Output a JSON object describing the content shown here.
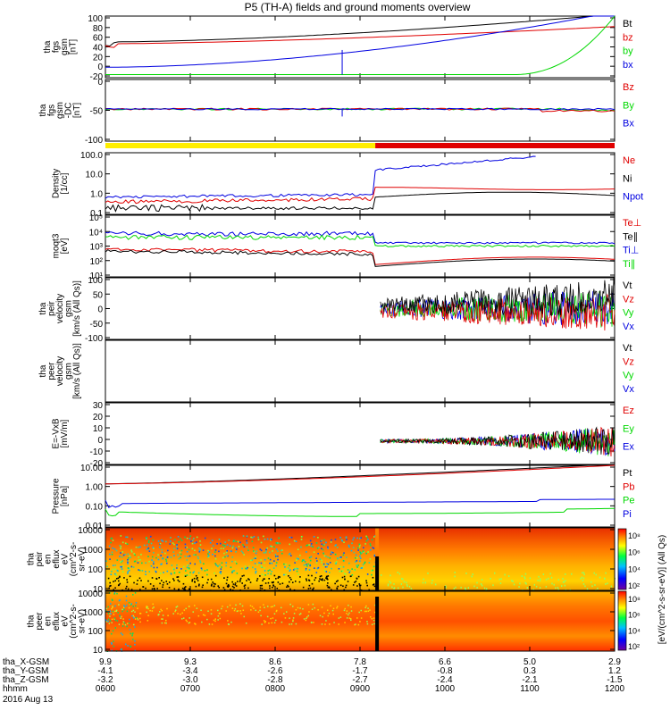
{
  "title": "P5 (TH-A) fields and ground moments overview",
  "date": "2016 Aug 13",
  "colors": {
    "black": "#000000",
    "red": "#e00000",
    "green": "#00d800",
    "blue": "#0000e0",
    "yellow": "#ffee00"
  },
  "chart_data": {
    "type": "line",
    "time_range": [
      "0600",
      "1200"
    ],
    "x_ticks": [
      "0600",
      "0700",
      "0800",
      "0900",
      "1000",
      "1100",
      "1200"
    ],
    "ephemeris": [
      {
        "label": "tha_X-GSM",
        "values": [
          "9.9",
          "9.3",
          "8.6",
          "7.8",
          "6.6",
          "5.0",
          "2.9"
        ]
      },
      {
        "label": "tha_Y-GSM",
        "values": [
          "-4.1",
          "-3.4",
          "-2.6",
          "-1.7",
          "-0.8",
          "0.3",
          "1.2"
        ]
      },
      {
        "label": "tha_Z-GSM",
        "values": [
          "-3.2",
          "-3.0",
          "-2.8",
          "-2.7",
          "-2.4",
          "-2.1",
          "-1.5"
        ]
      },
      {
        "label": "hhmm",
        "values": [
          "0600",
          "0700",
          "0800",
          "0900",
          "1000",
          "1100",
          "1200"
        ]
      }
    ],
    "panels": [
      {
        "id": "fgs-gsm",
        "ylabel": [
          "tha",
          "fgs",
          "gsm",
          "[nT]"
        ],
        "scale": "linear",
        "ylim": [
          -20,
          100
        ],
        "ticks": [
          "100",
          "80",
          "60",
          "40",
          "20",
          "0",
          "-20"
        ],
        "legend": [
          {
            "name": "Bt",
            "color": "black"
          },
          {
            "name": "bz",
            "color": "red"
          },
          {
            "name": "by",
            "color": "green"
          },
          {
            "name": "bx",
            "color": "blue"
          }
        ]
      },
      {
        "id": "fgs-gsm-dc",
        "ylabel": [
          "tha",
          "fgs",
          "gsm",
          "-DC",
          "[nT]"
        ],
        "scale": "linear",
        "ylim": [
          -120,
          40
        ],
        "ticks": [
          "0",
          "-50",
          "-100"
        ],
        "legend": [
          {
            "name": "Bz",
            "color": "red"
          },
          {
            "name": "By",
            "color": "green"
          },
          {
            "name": "Bx",
            "color": "blue"
          }
        ]
      },
      {
        "id": "density",
        "ylabel": [
          "Density",
          "[1/cc]"
        ],
        "scale": "log",
        "ticks": [
          "100.0",
          "10.0",
          "1.0",
          "0.1"
        ],
        "legend": [
          {
            "name": "Ne",
            "color": "red"
          },
          {
            "name": "Ni",
            "color": "black"
          },
          {
            "name": "Npot",
            "color": "blue"
          }
        ]
      },
      {
        "id": "temperature",
        "ylabel": [
          "moqt3",
          "[eV]"
        ],
        "scale": "log",
        "ticks": [
          "10⁵",
          "10⁴",
          "10³",
          "10²",
          "10¹"
        ],
        "legend": [
          {
            "name": "Te⊥",
            "color": "red"
          },
          {
            "name": "Te∥",
            "color": "black"
          },
          {
            "name": "Ti⊥",
            "color": "blue"
          },
          {
            "name": "Ti∥",
            "color": "green"
          }
        ]
      },
      {
        "id": "peir-velocity",
        "ylabel": [
          "tha",
          "peir",
          "velocity",
          "gsm",
          "[km/s (All Qs)]"
        ],
        "scale": "linear",
        "ylim": [
          -100,
          100
        ],
        "ticks": [
          "100",
          "50",
          "0",
          "-50",
          "-100"
        ],
        "legend": [
          {
            "name": "Vt",
            "color": "black"
          },
          {
            "name": "Vz",
            "color": "red"
          },
          {
            "name": "Vy",
            "color": "green"
          },
          {
            "name": "Vx",
            "color": "blue"
          }
        ]
      },
      {
        "id": "peer-velocity",
        "ylabel": [
          "tha",
          "peer",
          "velocity",
          "gsm",
          "[km/s (All Qs)]"
        ],
        "scale": "linear",
        "ticks": [],
        "legend": [
          {
            "name": "Vt",
            "color": "black"
          },
          {
            "name": "Vz",
            "color": "red"
          },
          {
            "name": "Vy",
            "color": "green"
          },
          {
            "name": "Vx",
            "color": "blue"
          }
        ]
      },
      {
        "id": "efield",
        "ylabel": [
          "E=-VxB",
          "[mV/m]"
        ],
        "scale": "linear",
        "ylim": [
          -20,
          30
        ],
        "ticks": [
          "30",
          "20",
          "10",
          "0",
          "-10",
          "-20"
        ],
        "legend": [
          {
            "name": "Ez",
            "color": "red"
          },
          {
            "name": "Ey",
            "color": "green"
          },
          {
            "name": "Ex",
            "color": "blue"
          }
        ]
      },
      {
        "id": "pressure",
        "ylabel": [
          "Pressure",
          "[nPa]"
        ],
        "scale": "log",
        "ticks": [
          "10.00",
          "1.00",
          "0.10",
          "0.01"
        ],
        "legend": [
          {
            "name": "Pt",
            "color": "black"
          },
          {
            "name": "Pb",
            "color": "red"
          },
          {
            "name": "Pe",
            "color": "green"
          },
          {
            "name": "Pi",
            "color": "blue"
          }
        ]
      },
      {
        "id": "peir-spec",
        "ylabel": [
          "tha",
          "peir",
          "en",
          "eflux",
          "eV",
          "(cm^2-s-",
          "sr-eV)"
        ],
        "scale": "log",
        "ticks": [
          "10000",
          "1000",
          "100",
          "10"
        ],
        "colorbar_ticks": [
          "10⁸",
          "10⁶",
          "10⁴",
          "10²"
        ]
      },
      {
        "id": "peer-spec",
        "ylabel": [
          "tha",
          "peer",
          "en",
          "eflux",
          "eV",
          "(cm^2-s-",
          "sr-eV)"
        ],
        "scale": "log",
        "ticks": [
          "10000",
          "1000",
          "100",
          "10"
        ],
        "colorbar_ticks": [
          "10⁸",
          "10⁶",
          "10⁴",
          "10²"
        ]
      }
    ],
    "colorbar_label": "[eV/(cm^2-s-sr-eV)] (All Qs)"
  }
}
